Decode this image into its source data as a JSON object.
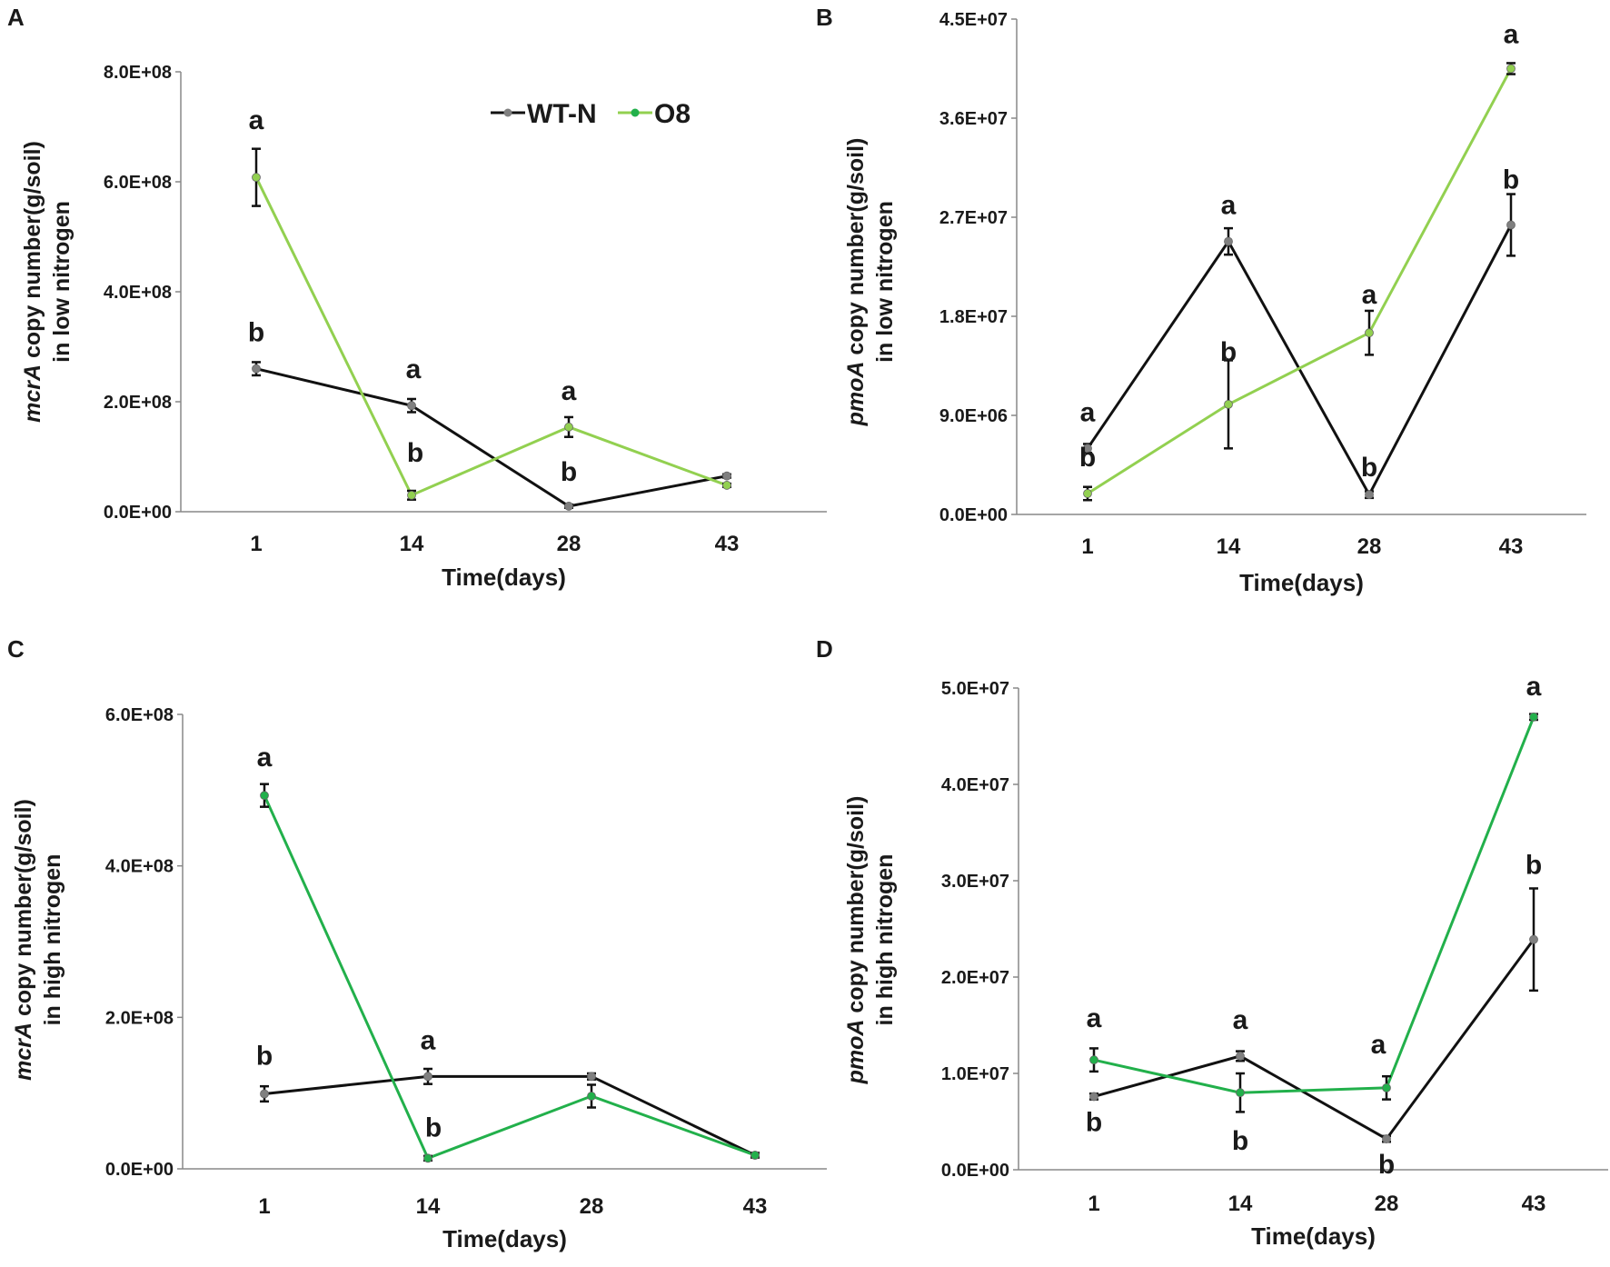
{
  "colors": {
    "wt": "#111111",
    "o8_low": "#92d050",
    "o8_high": "#22b04b",
    "marker": "#808080",
    "axis": "#888888"
  },
  "legend": {
    "series": [
      "WT-N",
      "O8"
    ],
    "placement": "top-right of panel A"
  },
  "chart_data": [
    {
      "panel": "A",
      "type": "line",
      "x": [
        "1",
        "14",
        "28",
        "43"
      ],
      "xlabel": "Time(days)",
      "ylabel_gene": "mcrA",
      "ylabel_rest": " copy number(g/soil)",
      "ylabel_line2": "in low nitrogen",
      "ylim": [
        0,
        800000000
      ],
      "yticks": [
        "0.0E+00",
        "2.0E+08",
        "4.0E+08",
        "6.0E+08",
        "8.0E+08"
      ],
      "series": [
        {
          "name": "WT-N",
          "color": "wt",
          "values": [
            260000000,
            193000000,
            10000000,
            65000000
          ],
          "errors": [
            12000000,
            12000000,
            3000000,
            3000000
          ],
          "letters": [
            "b",
            "a",
            "b",
            ""
          ]
        },
        {
          "name": "O8",
          "color": "o8_low",
          "values": [
            608000000,
            30000000,
            154000000,
            48000000
          ],
          "errors": [
            52000000,
            8000000,
            18000000,
            3000000
          ],
          "letters": [
            "a",
            "b",
            "a",
            ""
          ]
        }
      ]
    },
    {
      "panel": "B",
      "type": "line",
      "x": [
        "1",
        "14",
        "28",
        "43"
      ],
      "xlabel": "Time(days)",
      "ylabel_gene": "pmoA",
      "ylabel_rest": " copy number(g/soil)",
      "ylabel_line2": "in low nitrogen",
      "ylim": [
        0,
        45000000
      ],
      "yticks": [
        "0.0E+00",
        "9.0E+06",
        "1.8E+07",
        "2.7E+07",
        "3.6E+07",
        "4.5E+07"
      ],
      "series": [
        {
          "name": "WT-N",
          "color": "wt",
          "values": [
            6000000,
            24800000,
            1800000,
            26300000
          ],
          "errors": [
            400000,
            1200000,
            300000,
            2800000
          ],
          "letters": [
            "a",
            "a",
            "b",
            "b"
          ]
        },
        {
          "name": "O8",
          "color": "o8_low",
          "values": [
            1900000,
            10000000,
            16500000,
            40500000
          ],
          "errors": [
            600000,
            4000000,
            2000000,
            500000
          ],
          "letters": [
            "b",
            "b",
            "a",
            "a"
          ]
        }
      ]
    },
    {
      "panel": "C",
      "type": "line",
      "x": [
        "1",
        "14",
        "28",
        "43"
      ],
      "xlabel": "Time(days)",
      "ylabel_gene": "mcrA",
      "ylabel_rest": " copy number(g/soil)",
      "ylabel_line2": "in high nitrogen",
      "ylim": [
        0,
        600000000
      ],
      "yticks": [
        "0.0E+00",
        "2.0E+08",
        "4.0E+08",
        "6.0E+08"
      ],
      "series": [
        {
          "name": "WT-N",
          "color": "wt",
          "values": [
            99000000,
            122000000,
            122000000,
            18000000
          ],
          "errors": [
            10000000,
            10000000,
            4000000,
            3000000
          ],
          "letters": [
            "b",
            "a",
            "",
            ""
          ]
        },
        {
          "name": "O8",
          "color": "o8_high",
          "values": [
            493000000,
            14000000,
            96000000,
            18000000
          ],
          "errors": [
            15000000,
            3000000,
            15000000,
            3000000
          ],
          "letters": [
            "a",
            "b",
            "",
            ""
          ]
        }
      ]
    },
    {
      "panel": "D",
      "type": "line",
      "x": [
        "1",
        "14",
        "28",
        "43"
      ],
      "xlabel": "Time(days)",
      "ylabel_gene": "pmoA",
      "ylabel_rest": " copy number(g/soil)",
      "ylabel_line2": "in high nitrogen",
      "ylim": [
        0,
        50000000
      ],
      "yticks": [
        "0.0E+00",
        "1.0E+07",
        "2.0E+07",
        "3.0E+07",
        "4.0E+07",
        "5.0E+07"
      ],
      "series": [
        {
          "name": "WT-N",
          "color": "wt",
          "values": [
            7600000,
            11800000,
            3200000,
            23900000
          ],
          "errors": [
            300000,
            500000,
            300000,
            5300000
          ],
          "letters": [
            "b",
            "a",
            "b",
            "b"
          ]
        },
        {
          "name": "O8",
          "color": "o8_high",
          "values": [
            11400000,
            8000000,
            8500000,
            47000000
          ],
          "errors": [
            1200000,
            2000000,
            1200000,
            300000
          ],
          "letters": [
            "a",
            "b",
            "a",
            "a"
          ]
        }
      ]
    }
  ]
}
